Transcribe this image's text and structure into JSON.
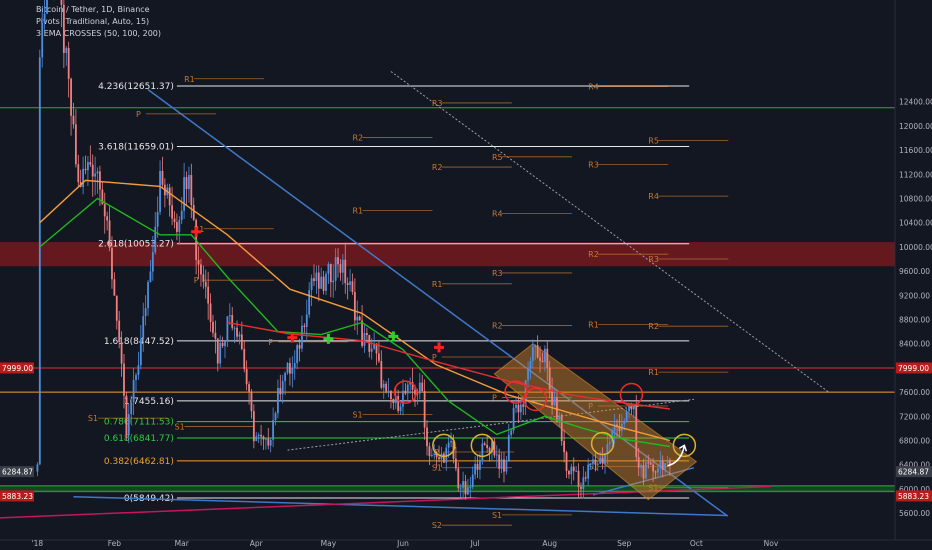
{
  "legend": {
    "symbol": "Bitcoin / Tether, 1D, Binance",
    "pivots": "Pivots (Traditional, Auto, 15)",
    "ema": "3 EMA CROSSES (50, 100, 200)"
  },
  "colors": {
    "background": "#131722",
    "up": "#4f8fe0",
    "down": "#f08080",
    "ema50": "#1fb81f",
    "ema100": "#f29b3b",
    "ema200": "#e23030",
    "trendline": "#3f78c8",
    "pivot": "#c8782e",
    "price_tag": "#b71c1c",
    "channel": "#d98a2b",
    "resistance_band": "#b71c1c",
    "support_band": "#1b7a2a",
    "pink_trend": "#c2185b",
    "circle_red": "#ef2b2b",
    "circle_orange": "#e0b030",
    "cross_red": "#ff1f1f",
    "cross_green": "#2bd42b"
  },
  "chart_data": {
    "type": "candlestick",
    "y_axis": {
      "ticks": [
        "12400.00",
        "12000.00",
        "11600.00",
        "11200.00",
        "10800.00",
        "10400.00",
        "10000.00",
        "9600.00",
        "9200.00",
        "8800.00",
        "8400.00",
        "8000.00",
        "7600.00",
        "7200.00",
        "6800.00",
        "6400.00",
        "6000.00",
        "5600.00"
      ],
      "price_tags_right": [
        "7999.00",
        "6284.87",
        "5883.23"
      ],
      "price_tags_left": [
        "7999.00",
        "6284.87",
        "5883.23"
      ],
      "ylim": [
        5320,
        12640
      ]
    },
    "x_axis": {
      "ticks": [
        "'18",
        "Feb",
        "Mar",
        "Apr",
        "May",
        "Jun",
        "Jul",
        "Aug",
        "Sep",
        "Oct",
        "Nov"
      ]
    },
    "fib_levels": [
      {
        "label": "4.236(12651.37)",
        "value": 12660,
        "color": "#e8e8e8"
      },
      {
        "label": "3.618(11659.01)",
        "value": 11659,
        "color": "#e8e8e8"
      },
      {
        "label": "2.618(10053.27)",
        "value": 10053,
        "color": "#e8e8e8"
      },
      {
        "label": "1.618(8447.52)",
        "value": 8447,
        "color": "#e8e8e8"
      },
      {
        "label": "1(7455.16)",
        "value": 7455,
        "color": "#e8e8e8"
      },
      {
        "label": "0.786(7111.53)",
        "value": 7111,
        "color": "#2ecc40"
      },
      {
        "label": "0.618(6841.77)",
        "value": 6841,
        "color": "#2ecc40"
      },
      {
        "label": "0.382(6462.81)",
        "value": 6462,
        "color": "#f0a030"
      },
      {
        "label": "0(5849.42)",
        "value": 5849,
        "color": "#e8e8e8"
      }
    ],
    "horizontal_lines": [
      {
        "value": 12300,
        "color": "#23b523"
      },
      {
        "value": 7600,
        "color": "#f0a030"
      },
      {
        "value": 7999,
        "color": "#e03030"
      },
      {
        "value": 6050,
        "color": "#23b523"
      },
      {
        "value": 5960,
        "color": "#23b523"
      }
    ],
    "zones": [
      {
        "name": "resistance",
        "from": 9680,
        "to": 10080
      },
      {
        "name": "support",
        "from": 5940,
        "to": 6060
      }
    ],
    "pivot_labels": [
      {
        "text": "R1",
        "x": "2018-03-02",
        "y": 12730
      },
      {
        "text": "P",
        "x": "2018-02-10",
        "y": 12150
      },
      {
        "text": "R3",
        "x": "2018-06-13",
        "y": 12330
      },
      {
        "text": "R4",
        "x": "2018-08-17",
        "y": 12600
      },
      {
        "text": "R2",
        "x": "2018-05-11",
        "y": 11760
      },
      {
        "text": "R5",
        "x": "2018-09-11",
        "y": 11710
      },
      {
        "text": "R5",
        "x": "2018-07-08",
        "y": 11440
      },
      {
        "text": "R2",
        "x": "2018-06-13",
        "y": 11270
      },
      {
        "text": "R3",
        "x": "2018-08-17",
        "y": 11310
      },
      {
        "text": "R4",
        "x": "2018-09-11",
        "y": 10790
      },
      {
        "text": "R1",
        "x": "2018-05-11",
        "y": 10550
      },
      {
        "text": "R4",
        "x": "2018-07-08",
        "y": 10500
      },
      {
        "text": "R1",
        "x": "2018-03-06",
        "y": 10250
      },
      {
        "text": "R2",
        "x": "2018-08-17",
        "y": 9830
      },
      {
        "text": "R3",
        "x": "2018-09-11",
        "y": 9750
      },
      {
        "text": "R3",
        "x": "2018-07-08",
        "y": 9520
      },
      {
        "text": "P",
        "x": "2018-03-06",
        "y": 9400
      },
      {
        "text": "R1",
        "x": "2018-06-13",
        "y": 9340
      },
      {
        "text": "R2",
        "x": "2018-07-08",
        "y": 8650
      },
      {
        "text": "R1",
        "x": "2018-08-17",
        "y": 8670
      },
      {
        "text": "R2",
        "x": "2018-09-11",
        "y": 8640
      },
      {
        "text": "P",
        "x": "2018-04-06",
        "y": 8380
      },
      {
        "text": "P",
        "x": "2018-06-13",
        "y": 8130
      },
      {
        "text": "R1",
        "x": "2018-09-11",
        "y": 7880
      },
      {
        "text": "P",
        "x": "2018-07-08",
        "y": 7460
      },
      {
        "text": "S1",
        "x": "2018-01-21",
        "y": 7120
      },
      {
        "text": "S1",
        "x": "2018-05-11",
        "y": 7180
      },
      {
        "text": "P",
        "x": "2018-08-17",
        "y": 7320
      },
      {
        "text": "S1",
        "x": "2018-02-26",
        "y": 6980
      },
      {
        "text": "P",
        "x": "2018-06-14",
        "y": 6560
      },
      {
        "text": "S1",
        "x": "2018-06-13",
        "y": 6300
      },
      {
        "text": "S1",
        "x": "2018-08-17",
        "y": 6320
      },
      {
        "text": "S1",
        "x": "2018-09-11",
        "y": 5970
      },
      {
        "text": "S1",
        "x": "2018-07-08",
        "y": 5520
      },
      {
        "text": "S2",
        "x": "2018-06-13",
        "y": 5350
      }
    ],
    "series": [
      {
        "name": "BTCUSDT",
        "kind": "candlestick",
        "anchors": [
          [
            "2018-01-01",
            13400
          ],
          [
            "2018-01-07",
            15000
          ],
          [
            "2018-01-12",
            13000
          ],
          [
            "2018-01-17",
            11000
          ],
          [
            "2018-01-22",
            11400
          ],
          [
            "2018-01-26",
            11200
          ],
          [
            "2018-02-02",
            8900
          ],
          [
            "2018-02-06",
            6900
          ],
          [
            "2018-02-12",
            8400
          ],
          [
            "2018-02-20",
            11100
          ],
          [
            "2018-02-27",
            10400
          ],
          [
            "2018-03-04",
            11400
          ],
          [
            "2018-03-07",
            9900
          ],
          [
            "2018-03-12",
            9200
          ],
          [
            "2018-03-16",
            8200
          ],
          [
            "2018-03-21",
            8900
          ],
          [
            "2018-03-25",
            8600
          ],
          [
            "2018-03-31",
            6900
          ],
          [
            "2018-04-05",
            6700
          ],
          [
            "2018-04-07",
            6950
          ],
          [
            "2018-04-12",
            7900
          ],
          [
            "2018-04-17",
            8000
          ],
          [
            "2018-04-24",
            9500
          ],
          [
            "2018-04-28",
            9300
          ],
          [
            "2018-05-05",
            9800
          ],
          [
            "2018-05-10",
            9300
          ],
          [
            "2018-05-15",
            8500
          ],
          [
            "2018-05-20",
            8300
          ],
          [
            "2018-05-25",
            7500
          ],
          [
            "2018-05-29",
            7400
          ],
          [
            "2018-06-01",
            7550
          ],
          [
            "2018-06-06",
            7650
          ],
          [
            "2018-06-09",
            7600
          ],
          [
            "2018-06-11",
            6700
          ],
          [
            "2018-06-15",
            6450
          ],
          [
            "2018-06-21",
            6700
          ],
          [
            "2018-06-24",
            6100
          ],
          [
            "2018-06-28",
            5900
          ],
          [
            "2018-07-03",
            6600
          ],
          [
            "2018-07-08",
            6750
          ],
          [
            "2018-07-13",
            6250
          ],
          [
            "2018-07-17",
            7350
          ],
          [
            "2018-07-21",
            7400
          ],
          [
            "2018-07-24",
            8200
          ],
          [
            "2018-07-27",
            8200
          ],
          [
            "2018-07-30",
            8200
          ],
          [
            "2018-08-01",
            7600
          ],
          [
            "2018-08-05",
            7100
          ],
          [
            "2018-08-08",
            6300
          ],
          [
            "2018-08-12",
            6300
          ],
          [
            "2018-08-14",
            6000
          ],
          [
            "2018-08-18",
            6400
          ],
          [
            "2018-08-23",
            6500
          ],
          [
            "2018-08-28",
            7000
          ],
          [
            "2018-09-02",
            7200
          ],
          [
            "2018-09-05",
            7350
          ],
          [
            "2018-09-06",
            6450
          ],
          [
            "2018-09-09",
            6300
          ],
          [
            "2018-09-12",
            6300
          ],
          [
            "2018-09-17",
            6450
          ],
          [
            "2018-09-20",
            6285
          ]
        ]
      },
      {
        "name": "EMA 50",
        "kind": "line",
        "anchors": [
          [
            "2018-01-01",
            10000
          ],
          [
            "2018-01-25",
            10800
          ],
          [
            "2018-02-20",
            10200
          ],
          [
            "2018-03-05",
            10200
          ],
          [
            "2018-03-20",
            9500
          ],
          [
            "2018-04-10",
            8600
          ],
          [
            "2018-04-28",
            8550
          ],
          [
            "2018-05-15",
            8750
          ],
          [
            "2018-06-01",
            8300
          ],
          [
            "2018-06-20",
            7450
          ],
          [
            "2018-07-10",
            6900
          ],
          [
            "2018-07-30",
            7200
          ],
          [
            "2018-08-15",
            7000
          ],
          [
            "2018-09-01",
            6820
          ],
          [
            "2018-09-20",
            6700
          ]
        ]
      },
      {
        "name": "EMA 100",
        "kind": "line",
        "anchors": [
          [
            "2018-01-01",
            10400
          ],
          [
            "2018-01-20",
            11100
          ],
          [
            "2018-02-20",
            11000
          ],
          [
            "2018-03-20",
            10200
          ],
          [
            "2018-04-15",
            9300
          ],
          [
            "2018-05-15",
            8900
          ],
          [
            "2018-06-15",
            8050
          ],
          [
            "2018-07-15",
            7550
          ],
          [
            "2018-08-10",
            7250
          ],
          [
            "2018-09-01",
            7000
          ],
          [
            "2018-09-20",
            6800
          ]
        ]
      },
      {
        "name": "EMA 200",
        "kind": "line",
        "anchors": [
          [
            "2018-03-20",
            8750
          ],
          [
            "2018-04-15",
            8560
          ],
          [
            "2018-05-15",
            8450
          ],
          [
            "2018-06-15",
            8100
          ],
          [
            "2018-07-15",
            7780
          ],
          [
            "2018-08-10",
            7550
          ],
          [
            "2018-09-01",
            7420
          ],
          [
            "2018-09-20",
            7320
          ]
        ]
      }
    ],
    "crosses": [
      {
        "color": "red",
        "x": "2018-03-07",
        "y": 10250
      },
      {
        "color": "red",
        "x": "2018-04-16",
        "y": 8500
      },
      {
        "color": "green",
        "x": "2018-05-01",
        "y": 8480
      },
      {
        "color": "green",
        "x": "2018-05-28",
        "y": 8520
      },
      {
        "color": "red",
        "x": "2018-06-16",
        "y": 8340
      }
    ],
    "circles": [
      {
        "color": "red",
        "x": "2018-06-02",
        "y": 7600
      },
      {
        "color": "orange",
        "x": "2018-06-18",
        "y": 6720
      },
      {
        "color": "orange",
        "x": "2018-07-04",
        "y": 6720
      },
      {
        "color": "red",
        "x": "2018-07-18",
        "y": 7600
      },
      {
        "color": "red",
        "x": "2018-07-26",
        "y": 7480
      },
      {
        "color": "orange",
        "x": "2018-08-23",
        "y": 6750
      },
      {
        "color": "red",
        "x": "2018-09-04",
        "y": 7560
      },
      {
        "color": "orange",
        "x": "2018-09-26",
        "y": 6720
      }
    ]
  }
}
